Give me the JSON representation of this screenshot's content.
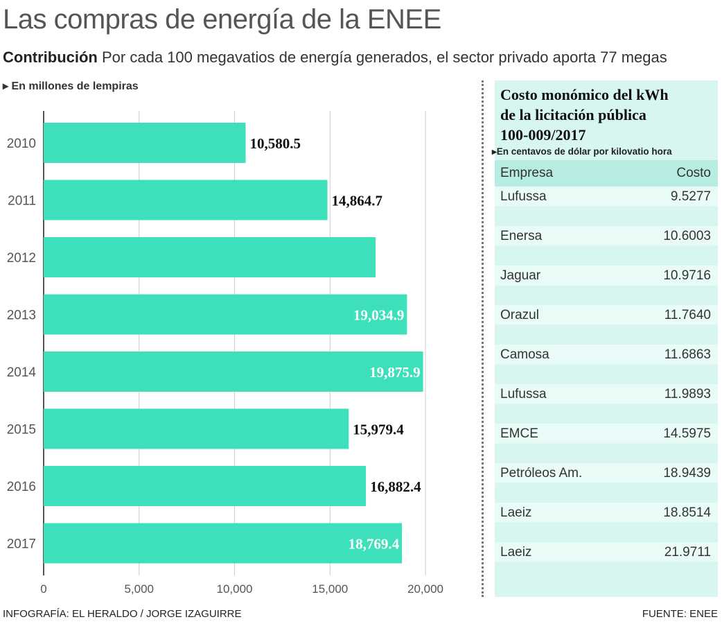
{
  "title": "Las compras de energía de la ENEE",
  "subtitle": {
    "bold": "Contribución",
    "text": "Por cada 100 megavatios de energía generados, el sector privado aporta 77 megas"
  },
  "unit_note": "En millones de lempiras",
  "chart_data": {
    "type": "bar",
    "orientation": "horizontal",
    "categories": [
      "2010",
      "2011",
      "2012",
      "2013",
      "2014",
      "2015",
      "2016",
      "2017"
    ],
    "values": [
      10580.5,
      14864.7,
      17390,
      19034.9,
      19875.9,
      15979.4,
      16882.4,
      18769.4
    ],
    "data_labels": [
      "10,580.5",
      "14,864.7",
      "",
      "19,034.9",
      "19,875.9",
      "15,979.4",
      "16,882.4",
      "18,769.4"
    ],
    "label_inside": [
      false,
      false,
      false,
      true,
      true,
      false,
      false,
      true
    ],
    "xlim": [
      0,
      20000
    ],
    "xticks": [
      "0",
      "5,000",
      "10,000",
      "15,000",
      "20,000"
    ],
    "xtick_values": [
      0,
      5000,
      10000,
      15000,
      20000
    ],
    "grid": true,
    "bar_color": "#3ee0bb"
  },
  "table": {
    "title_lines": [
      "Costo monómico del kWh",
      "de la licitación pública",
      "100-009/2017"
    ],
    "unit": "En centavos de dólar por kilovatio hora",
    "headers": [
      "Empresa",
      "Costo"
    ],
    "rows": [
      [
        "Lufussa",
        "9.5277"
      ],
      [
        "Enersa",
        "10.6003"
      ],
      [
        "Jaguar",
        "10.9716"
      ],
      [
        "Orazul",
        "11.7640"
      ],
      [
        "Camosa",
        "11.6863"
      ],
      [
        "Lufussa",
        "11.9893"
      ],
      [
        "EMCE",
        "14.5975"
      ],
      [
        "Petróleos Am.",
        "18.9439"
      ],
      [
        "Laeiz",
        "18.8514"
      ],
      [
        "Laeiz",
        "21.9711"
      ]
    ]
  },
  "footer": {
    "credit": "INFOGRAFÍA: EL HERALDO / JORGE IZAGUIRRE",
    "source": "FUENTE: ENEE"
  }
}
